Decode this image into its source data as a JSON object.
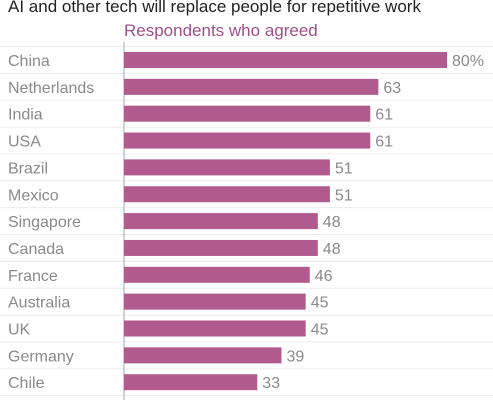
{
  "chart_data": {
    "type": "bar",
    "orientation": "horizontal",
    "title": "AI and other tech will replace people for repetitive work",
    "subtitle": "Respondents who agreed",
    "categories": [
      "China",
      "Netherlands",
      "India",
      "USA",
      "Brazil",
      "Mexico",
      "Singapore",
      "Canada",
      "France",
      "Australia",
      "UK",
      "Germany",
      "Chile"
    ],
    "values": [
      80,
      63,
      61,
      61,
      51,
      51,
      48,
      48,
      46,
      45,
      45,
      39,
      33
    ],
    "value_labels": [
      "80%",
      "63",
      "61",
      "61",
      "51",
      "51",
      "48",
      "48",
      "46",
      "45",
      "45",
      "39",
      "33"
    ],
    "xlim": [
      0,
      80
    ],
    "bar_color": "#b05a8e",
    "grid": true
  }
}
